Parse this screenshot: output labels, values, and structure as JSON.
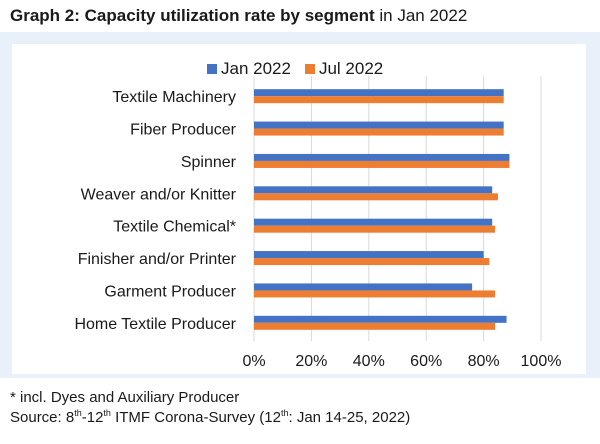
{
  "header": {
    "title_bold": "Graph 2: Capacity utilization rate by segment",
    "title_rest": " in Jan 2022"
  },
  "colors": {
    "background_panel": "#e8f1f9",
    "plot_background": "#ffffff",
    "grid": "#d9d9d9"
  },
  "chart_data": {
    "type": "bar",
    "orientation": "horizontal",
    "title": "",
    "xlabel": "",
    "ylabel": "",
    "xlim": [
      0,
      100
    ],
    "x_ticks": [
      "0%",
      "20%",
      "40%",
      "60%",
      "80%",
      "100%"
    ],
    "x_tick_values": [
      0,
      20,
      40,
      60,
      80,
      100
    ],
    "grid": true,
    "legend_position": "top",
    "categories": [
      "Textile Machinery",
      "Fiber Producer",
      "Spinner",
      "Weaver and/or Knitter",
      "Textile Chemical*",
      "Finisher and/or Printer",
      "Garment Producer",
      "Home Textile Producer"
    ],
    "series": [
      {
        "name": "Jan 2022",
        "color": "#4472c4",
        "values": [
          87,
          87,
          89,
          83,
          83,
          80,
          76,
          88
        ]
      },
      {
        "name": "Jul 2022",
        "color": "#ed7d31",
        "values": [
          87,
          87,
          89,
          85,
          84,
          82,
          84,
          84
        ]
      }
    ]
  },
  "footer": {
    "note": "* incl. Dyes and Auxiliary Producer",
    "source_prefix": "Source: 8",
    "source_sup1": "th",
    "source_mid": "-12",
    "source_sup2": "th",
    "source_mid2": " ITMF Corona-Survey (12",
    "source_sup3": "th",
    "source_end": ": Jan 14-25, 2022)"
  }
}
